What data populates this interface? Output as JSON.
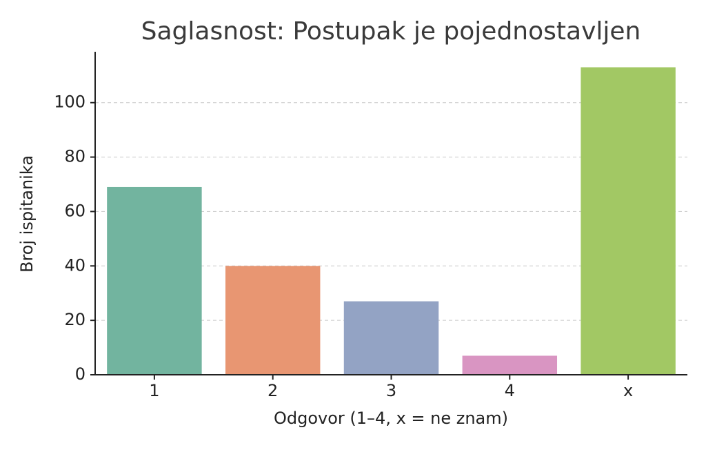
{
  "chart_data": {
    "type": "bar",
    "title": "Saglasnost: Postupak je pojednostavljen",
    "x_label": "Odgovor (1–4, x = ne znam)",
    "y_label": "Broj ispitanika",
    "categories": [
      "1",
      "2",
      "3",
      "4",
      "x"
    ],
    "values": [
      69,
      40,
      27,
      7,
      113
    ],
    "colors": [
      "#72b49f",
      "#e89672",
      "#93a3c4",
      "#d995c2",
      "#a2c864"
    ],
    "ylim": [
      0,
      118.7
    ],
    "yticks": [
      0,
      20,
      40,
      60,
      80,
      100
    ],
    "grid": true
  }
}
